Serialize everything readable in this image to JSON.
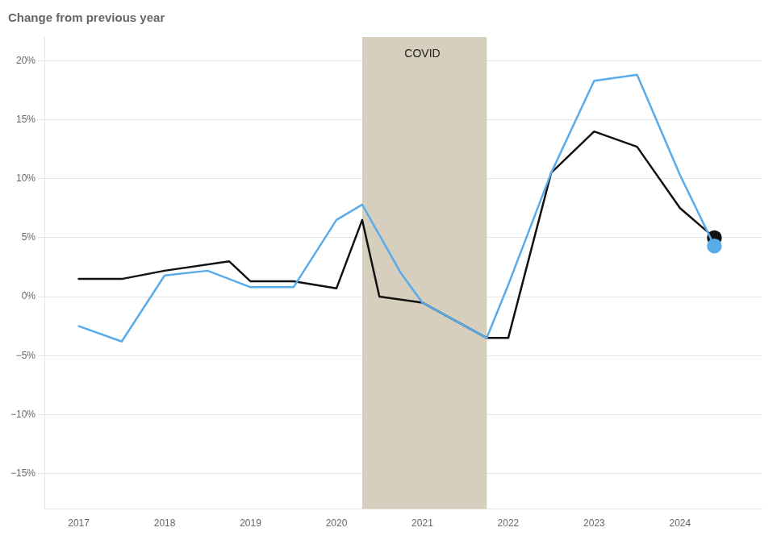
{
  "chart_data": {
    "type": "line",
    "title": "Change from previous year",
    "xlim": [
      2016.6,
      2024.95
    ],
    "xticks": [
      2017,
      2018,
      2019,
      2020,
      2021,
      2022,
      2023,
      2024
    ],
    "ylim": [
      -0.18,
      0.22
    ],
    "yticks": [
      {
        "value": -0.15,
        "label": "−15%"
      },
      {
        "value": -0.1,
        "label": "−10%"
      },
      {
        "value": -0.05,
        "label": "−5%"
      },
      {
        "value": 0.0,
        "label": "0%"
      },
      {
        "value": 0.05,
        "label": "5%"
      },
      {
        "value": 0.1,
        "label": "10%"
      },
      {
        "value": 0.15,
        "label": "15%"
      },
      {
        "value": 0.2,
        "label": "20%"
      }
    ],
    "grid": "y",
    "series": [
      {
        "color": "#5aabea",
        "x": [
          2017,
          2017.5,
          2018,
          2018.5,
          2019,
          2019.5,
          2020,
          2020.3,
          2020.75,
          2021,
          2021.75,
          2022,
          2022.5,
          2023,
          2023.5,
          2024,
          2024.4
        ],
        "values": [
          -0.025,
          -0.038,
          0.018,
          0.022,
          0.008,
          0.008,
          0.065,
          0.078,
          0.02,
          -0.005,
          -0.035,
          0.01,
          0.105,
          0.183,
          0.188,
          0.103,
          0.043
        ]
      },
      {
        "color": "#111111",
        "x": [
          2017,
          2017.5,
          2018,
          2018.75,
          2019,
          2019.5,
          2020,
          2020.3,
          2020.5,
          2021,
          2021.75,
          2022,
          2022.5,
          2023,
          2023.5,
          2024,
          2024.4
        ],
        "values": [
          0.015,
          0.015,
          0.022,
          0.03,
          0.013,
          0.013,
          0.007,
          0.065,
          0.0,
          -0.005,
          -0.035,
          -0.035,
          0.105,
          0.14,
          0.127,
          0.075,
          0.05
        ]
      }
    ],
    "spans": [
      {
        "x": [
          2020.3,
          2021.75
        ],
        "color": "#d6cfbe"
      }
    ],
    "annotations": [
      {
        "text": "COVID",
        "x": 2021.0,
        "y": 0.21
      }
    ]
  }
}
